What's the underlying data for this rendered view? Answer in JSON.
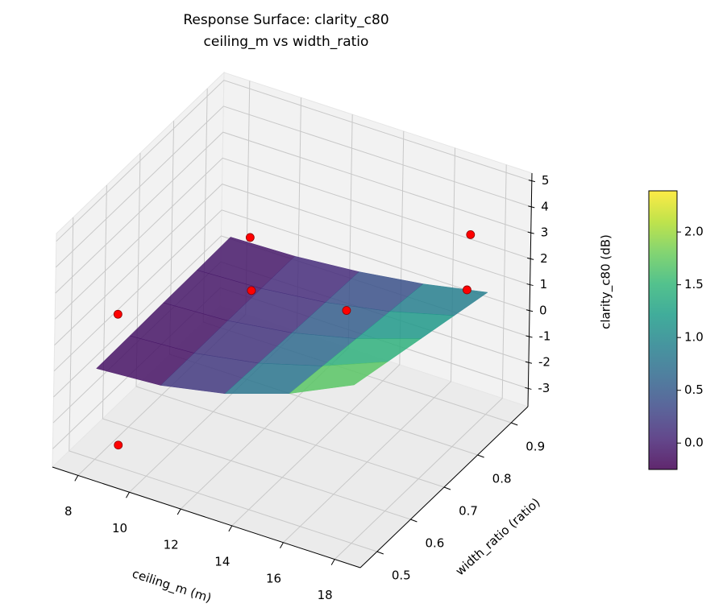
{
  "chart_data": {
    "type": "surface3d",
    "title": [
      "Response Surface: clarity_c80",
      "ceiling_m vs width_ratio"
    ],
    "xlabel": "ceiling_m (m)",
    "ylabel": "width_ratio (ratio)",
    "zlabel": "clarity_c80 (dB)",
    "xlim": [
      7,
      19
    ],
    "ylim": [
      0.45,
      0.95
    ],
    "zlim": [
      -3.7,
      5.3
    ],
    "xticks": [
      8,
      10,
      12,
      14,
      16,
      18
    ],
    "yticks": [
      0.5,
      0.6,
      0.7,
      0.8,
      0.9
    ],
    "zticks": [
      -3,
      -2,
      -1,
      0,
      1,
      2,
      3,
      4,
      5
    ],
    "grid": true,
    "colormap": "viridis",
    "surface_alpha": 0.85,
    "surface": {
      "x": [
        8,
        10.5,
        13,
        15.5,
        18
      ],
      "y": [
        0.5,
        0.6,
        0.7,
        0.8,
        0.9
      ],
      "z": [
        [
          -0.2,
          -0.04,
          0.45,
          1.26,
          2.4
        ],
        [
          -0.18,
          -0.04,
          0.38,
          1.08,
          2.05
        ],
        [
          -0.15,
          -0.03,
          0.31,
          0.89,
          1.7
        ],
        [
          -0.13,
          -0.03,
          0.24,
          0.7,
          1.35
        ],
        [
          -0.1,
          -0.03,
          0.18,
          0.52,
          1.0
        ]
      ]
    },
    "points": {
      "color": "#ff0000",
      "x": [
        8.76,
        11.4,
        8.8,
        8.9,
        15.1,
        17.3,
        17.2
      ],
      "y": [
        0.9,
        0.7,
        0.5,
        0.5,
        0.7,
        0.9,
        0.9
      ],
      "z": [
        0.13,
        1.42,
        2.15,
        -2.86,
        1.85,
        3.0,
        0.84
      ]
    },
    "colorbar": {
      "clim": [
        -0.25,
        2.39
      ],
      "ticks": [
        {
          "value": 0,
          "label": "0.0"
        },
        0.5,
        {
          "value": 1,
          "label": "1.0"
        },
        1.5,
        {
          "value": 2,
          "label": "2.0"
        }
      ]
    }
  }
}
